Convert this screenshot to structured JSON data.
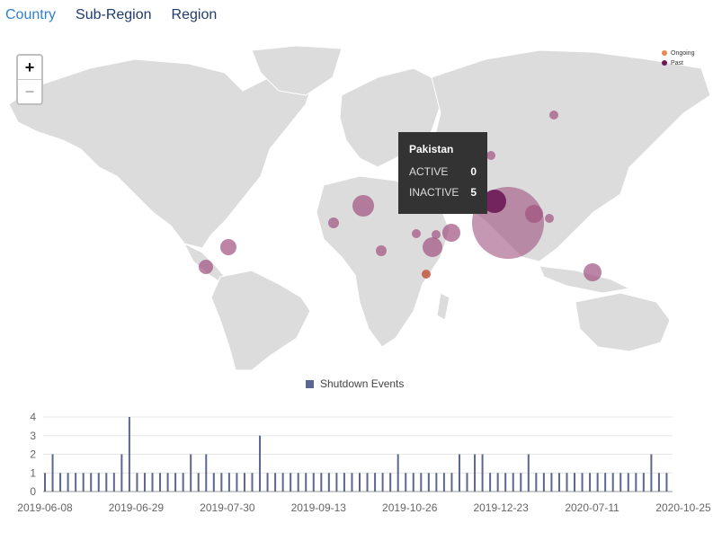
{
  "tabs": [
    {
      "label": "Country",
      "active": true
    },
    {
      "label": "Sub-Region",
      "active": false
    },
    {
      "label": "Region",
      "active": false
    }
  ],
  "zoom": {
    "in_label": "+",
    "out_label": "−"
  },
  "map_legend": [
    {
      "label": "Ongoing",
      "color": "#e8894f"
    },
    {
      "label": "Past",
      "color": "#6b1a56"
    }
  ],
  "tooltip": {
    "country": "Pakistan",
    "active_label": "ACTIVE",
    "active_value": "0",
    "inactive_label": "INACTIVE",
    "inactive_value": "5"
  },
  "colors": {
    "land": "#dcdcdc",
    "bubble": "#a0517f",
    "bar": "#5b6790",
    "ongoing": "#c4563c"
  },
  "chart_data": {
    "type": "bar",
    "series": [
      {
        "name": "Shutdown Events",
        "values": [
          1,
          2,
          1,
          1,
          1,
          1,
          1,
          1,
          1,
          1,
          2,
          4,
          1,
          1,
          1,
          1,
          1,
          1,
          1,
          2,
          1,
          2,
          1,
          1,
          1,
          1,
          1,
          1,
          3,
          1,
          1,
          1,
          1,
          1,
          1,
          1,
          1,
          1,
          1,
          1,
          1,
          1,
          1,
          1,
          1,
          1,
          2,
          1,
          1,
          1,
          1,
          1,
          1,
          1,
          2,
          1,
          2,
          2,
          1,
          1,
          1,
          1,
          1,
          2,
          1,
          1,
          1,
          1,
          1,
          1,
          1,
          1,
          1,
          1,
          1,
          1,
          1,
          1,
          1,
          2,
          1,
          1
        ]
      }
    ],
    "x_tick_labels": [
      "2019-06-08",
      "2019-06-29",
      "2019-07-30",
      "2019-09-13",
      "2019-10-26",
      "2019-12-23",
      "2020-07-11",
      "2020-10-25"
    ],
    "y_ticks": [
      0,
      1,
      2,
      3,
      4
    ],
    "ylim": [
      0,
      4
    ],
    "grid": true,
    "legend": "top"
  }
}
